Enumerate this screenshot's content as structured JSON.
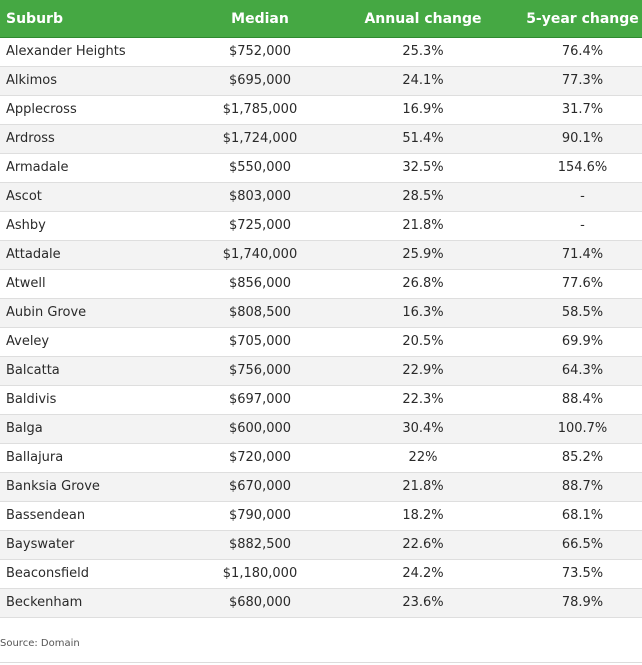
{
  "table": {
    "headers": [
      "Suburb",
      "Median",
      "Annual change",
      "5-year change"
    ],
    "rows": [
      [
        "Alexander Heights",
        "$752,000",
        "25.3%",
        "76.4%"
      ],
      [
        "Alkimos",
        "$695,000",
        "24.1%",
        "77.3%"
      ],
      [
        "Applecross",
        "$1,785,000",
        "16.9%",
        "31.7%"
      ],
      [
        "Ardross",
        "$1,724,000",
        "51.4%",
        "90.1%"
      ],
      [
        "Armadale",
        "$550,000",
        "32.5%",
        "154.6%"
      ],
      [
        "Ascot",
        "$803,000",
        "28.5%",
        "-"
      ],
      [
        "Ashby",
        "$725,000",
        "21.8%",
        "-"
      ],
      [
        "Attadale",
        "$1,740,000",
        "25.9%",
        "71.4%"
      ],
      [
        "Atwell",
        "$856,000",
        "26.8%",
        "77.6%"
      ],
      [
        "Aubin Grove",
        "$808,500",
        "16.3%",
        "58.5%"
      ],
      [
        "Aveley",
        "$705,000",
        "20.5%",
        "69.9%"
      ],
      [
        "Balcatta",
        "$756,000",
        "22.9%",
        "64.3%"
      ],
      [
        "Baldivis",
        "$697,000",
        "22.3%",
        "88.4%"
      ],
      [
        "Balga",
        "$600,000",
        "30.4%",
        "100.7%"
      ],
      [
        "Ballajura",
        "$720,000",
        "22%",
        "85.2%"
      ],
      [
        "Banksia Grove",
        "$670,000",
        "21.8%",
        "88.7%"
      ],
      [
        "Bassendean",
        "$790,000",
        "18.2%",
        "68.1%"
      ],
      [
        "Bayswater",
        "$882,500",
        "22.6%",
        "66.5%"
      ],
      [
        "Beaconsfield",
        "$1,180,000",
        "24.2%",
        "73.5%"
      ],
      [
        "Beckenham",
        "$680,000",
        "23.6%",
        "78.9%"
      ]
    ]
  },
  "source": "Source: Domain",
  "colors": {
    "header_bg": "#45a843",
    "header_text": "#ffffff",
    "stripe": "#f3f3f3"
  }
}
